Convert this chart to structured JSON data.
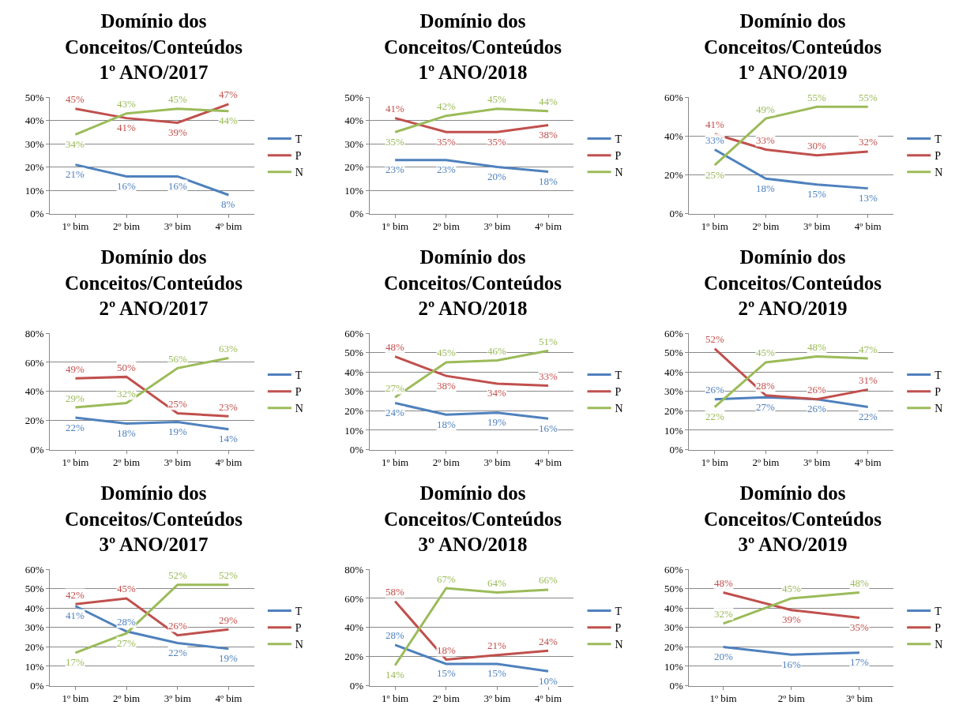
{
  "chart_data": [
    {
      "type": "line",
      "title": "Domínio dos\nConceitos/Conteúdos\n1º ANO/2017",
      "categories": [
        "1º bim",
        "2º bim",
        "3º bim",
        "4º bim"
      ],
      "ylim": [
        0,
        50
      ],
      "yticks": [
        {
          "value": 0,
          "label": "0%"
        },
        {
          "value": 10,
          "label": "10%"
        },
        {
          "value": 20,
          "label": "20%"
        },
        {
          "value": 30,
          "label": "30%"
        },
        {
          "value": 40,
          "label": "40%"
        },
        {
          "value": 50,
          "label": "50%"
        }
      ],
      "grid": "y",
      "legend": "right",
      "data_labels": true,
      "marker": "none",
      "series": [
        {
          "name": "T",
          "color": "#4f81bd",
          "values": [
            21,
            16,
            16,
            8
          ],
          "value_labels": [
            "21%",
            "16%",
            "16%",
            "8%"
          ]
        },
        {
          "name": "P",
          "color": "#c0504d",
          "values": [
            45,
            41,
            39,
            47
          ],
          "value_labels": [
            "45%",
            "41%",
            "39%",
            "47%"
          ]
        },
        {
          "name": "N",
          "color": "#9bbb59",
          "values": [
            34,
            43,
            45,
            44
          ],
          "value_labels": [
            "34%",
            "43%",
            "45%",
            "44%"
          ]
        }
      ]
    },
    {
      "type": "line",
      "title": "Domínio dos\nConceitos/Conteúdos\n1º ANO/2018",
      "categories": [
        "1º bim",
        "2º bim",
        "3º bim",
        "4º bim"
      ],
      "ylim": [
        0,
        50
      ],
      "yticks": [
        {
          "value": 0,
          "label": "0%"
        },
        {
          "value": 10,
          "label": "10%"
        },
        {
          "value": 20,
          "label": "20%"
        },
        {
          "value": 30,
          "label": "30%"
        },
        {
          "value": 40,
          "label": "40%"
        },
        {
          "value": 50,
          "label": "50%"
        }
      ],
      "grid": "y",
      "legend": "right",
      "data_labels": true,
      "marker": "none",
      "series": [
        {
          "name": "T",
          "color": "#4f81bd",
          "values": [
            23,
            23,
            20,
            18
          ],
          "value_labels": [
            "23%",
            "23%",
            "20%",
            "18%"
          ]
        },
        {
          "name": "P",
          "color": "#c0504d",
          "values": [
            41,
            35,
            35,
            38
          ],
          "value_labels": [
            "41%",
            "35%",
            "35%",
            "38%"
          ]
        },
        {
          "name": "N",
          "color": "#9bbb59",
          "values": [
            35,
            42,
            45,
            44
          ],
          "value_labels": [
            "35%",
            "42%",
            "45%",
            "44%"
          ]
        }
      ]
    },
    {
      "type": "line",
      "title": "Domínio dos\nConceitos/Conteúdos\n1º ANO/2019",
      "categories": [
        "1º bim",
        "2º bim",
        "3º bim",
        "4º bim"
      ],
      "ylim": [
        0,
        60
      ],
      "yticks": [
        {
          "value": 0,
          "label": "0%"
        },
        {
          "value": 20,
          "label": "20%"
        },
        {
          "value": 40,
          "label": "40%"
        },
        {
          "value": 60,
          "label": "60%"
        }
      ],
      "grid": "y",
      "legend": "right",
      "data_labels": true,
      "marker": "none",
      "series": [
        {
          "name": "T",
          "color": "#4f81bd",
          "values": [
            33,
            18,
            15,
            13
          ],
          "value_labels": [
            "33%",
            "18%",
            "15%",
            "13%"
          ]
        },
        {
          "name": "P",
          "color": "#c0504d",
          "values": [
            41,
            33,
            30,
            32
          ],
          "value_labels": [
            "41%",
            "33%",
            "30%",
            "32%"
          ]
        },
        {
          "name": "N",
          "color": "#9bbb59",
          "values": [
            25,
            49,
            55,
            55
          ],
          "value_labels": [
            "25%",
            "49%",
            "55%",
            "55%"
          ]
        }
      ]
    },
    {
      "type": "line",
      "title": "Domínio dos\nConceitos/Conteúdos\n2º ANO/2017",
      "categories": [
        "1º bim",
        "2º bim",
        "3º bim",
        "4º bim"
      ],
      "ylim": [
        0,
        80
      ],
      "yticks": [
        {
          "value": 0,
          "label": "0%"
        },
        {
          "value": 20,
          "label": "20%"
        },
        {
          "value": 40,
          "label": "40%"
        },
        {
          "value": 60,
          "label": "60%"
        },
        {
          "value": 80,
          "label": "80%"
        }
      ],
      "grid": "y",
      "legend": "right",
      "data_labels": true,
      "marker": "none",
      "series": [
        {
          "name": "T",
          "color": "#4f81bd",
          "values": [
            22,
            18,
            19,
            14
          ],
          "value_labels": [
            "22%",
            "18%",
            "19%",
            "14%"
          ]
        },
        {
          "name": "P",
          "color": "#c0504d",
          "values": [
            49,
            50,
            25,
            23
          ],
          "value_labels": [
            "49%",
            "50%",
            "25%",
            "23%"
          ]
        },
        {
          "name": "N",
          "color": "#9bbb59",
          "values": [
            29,
            32,
            56,
            63
          ],
          "value_labels": [
            "29%",
            "32%",
            "56%",
            "63%"
          ]
        }
      ]
    },
    {
      "type": "line",
      "title": "Domínio dos\nConceitos/Conteúdos\n2º ANO/2018",
      "categories": [
        "1º bim",
        "2º bim",
        "3º bim",
        "4º bim"
      ],
      "ylim": [
        0,
        60
      ],
      "yticks": [
        {
          "value": 0,
          "label": "0%"
        },
        {
          "value": 10,
          "label": "10%"
        },
        {
          "value": 20,
          "label": "20%"
        },
        {
          "value": 30,
          "label": "30%"
        },
        {
          "value": 40,
          "label": "40%"
        },
        {
          "value": 50,
          "label": "50%"
        },
        {
          "value": 60,
          "label": "60%"
        }
      ],
      "grid": "y",
      "legend": "right",
      "data_labels": true,
      "marker": "none",
      "series": [
        {
          "name": "T",
          "color": "#4f81bd",
          "values": [
            24,
            18,
            19,
            16
          ],
          "value_labels": [
            "24%",
            "18%",
            "19%",
            "16%"
          ]
        },
        {
          "name": "P",
          "color": "#c0504d",
          "values": [
            48,
            38,
            34,
            33
          ],
          "value_labels": [
            "48%",
            "38%",
            "34%",
            "33%"
          ]
        },
        {
          "name": "N",
          "color": "#9bbb59",
          "values": [
            27,
            45,
            46,
            51
          ],
          "value_labels": [
            "27%",
            "45%",
            "46%",
            "51%"
          ]
        }
      ]
    },
    {
      "type": "line",
      "title": "Domínio dos\nConceitos/Conteúdos\n2º ANO/2019",
      "categories": [
        "1º bim",
        "2º bim",
        "3º bim",
        "4º bim"
      ],
      "ylim": [
        0,
        60
      ],
      "yticks": [
        {
          "value": 0,
          "label": "0%"
        },
        {
          "value": 10,
          "label": "10%"
        },
        {
          "value": 20,
          "label": "20%"
        },
        {
          "value": 30,
          "label": "30%"
        },
        {
          "value": 40,
          "label": "40%"
        },
        {
          "value": 50,
          "label": "50%"
        },
        {
          "value": 60,
          "label": "60%"
        }
      ],
      "grid": "y",
      "legend": "right",
      "data_labels": true,
      "marker": "none",
      "series": [
        {
          "name": "T",
          "color": "#4f81bd",
          "values": [
            26,
            27,
            26,
            22
          ],
          "value_labels": [
            "26%",
            "27%",
            "26%",
            "22%"
          ]
        },
        {
          "name": "P",
          "color": "#c0504d",
          "values": [
            52,
            28,
            26,
            31
          ],
          "value_labels": [
            "52%",
            "28%",
            "26%",
            "31%"
          ]
        },
        {
          "name": "N",
          "color": "#9bbb59",
          "values": [
            22,
            45,
            48,
            47
          ],
          "value_labels": [
            "22%",
            "45%",
            "48%",
            "47%"
          ]
        }
      ]
    },
    {
      "type": "line",
      "title": "Domínio dos\nConceitos/Conteúdos\n3º ANO/2017",
      "categories": [
        "1º bim",
        "2º bim",
        "3º bim",
        "4º bim"
      ],
      "ylim": [
        0,
        60
      ],
      "yticks": [
        {
          "value": 0,
          "label": "0%"
        },
        {
          "value": 10,
          "label": "10%"
        },
        {
          "value": 20,
          "label": "20%"
        },
        {
          "value": 30,
          "label": "30%"
        },
        {
          "value": 40,
          "label": "40%"
        },
        {
          "value": 50,
          "label": "50%"
        },
        {
          "value": 60,
          "label": "60%"
        }
      ],
      "grid": "y",
      "legend": "right",
      "data_labels": true,
      "marker": "none",
      "series": [
        {
          "name": "T",
          "color": "#4f81bd",
          "values": [
            41,
            28,
            22,
            19
          ],
          "value_labels": [
            "41%",
            "28%",
            "22%",
            "19%"
          ]
        },
        {
          "name": "P",
          "color": "#c0504d",
          "values": [
            42,
            45,
            26,
            29
          ],
          "value_labels": [
            "42%",
            "45%",
            "26%",
            "29%"
          ]
        },
        {
          "name": "N",
          "color": "#9bbb59",
          "values": [
            17,
            27,
            52,
            52
          ],
          "value_labels": [
            "17%",
            "27%",
            "52%",
            "52%"
          ]
        }
      ]
    },
    {
      "type": "line",
      "title": "Domínio dos\nConceitos/Conteúdos\n3º ANO/2018",
      "categories": [
        "1º bim",
        "2º bim",
        "3º bim",
        "4º bim"
      ],
      "ylim": [
        0,
        80
      ],
      "yticks": [
        {
          "value": 0,
          "label": "0%"
        },
        {
          "value": 20,
          "label": "20%"
        },
        {
          "value": 40,
          "label": "40%"
        },
        {
          "value": 60,
          "label": "60%"
        },
        {
          "value": 80,
          "label": "80%"
        }
      ],
      "grid": "y",
      "legend": "right",
      "data_labels": true,
      "marker": "none",
      "series": [
        {
          "name": "T",
          "color": "#4f81bd",
          "values": [
            28,
            15,
            15,
            10
          ],
          "value_labels": [
            "28%",
            "15%",
            "15%",
            "10%"
          ]
        },
        {
          "name": "P",
          "color": "#c0504d",
          "values": [
            58,
            18,
            21,
            24
          ],
          "value_labels": [
            "58%",
            "18%",
            "21%",
            "24%"
          ]
        },
        {
          "name": "N",
          "color": "#9bbb59",
          "values": [
            14,
            67,
            64,
            66
          ],
          "value_labels": [
            "14%",
            "67%",
            "64%",
            "66%"
          ]
        }
      ]
    },
    {
      "type": "line",
      "title": "Domínio dos\nConceitos/Conteúdos\n3º ANO/2019",
      "categories": [
        "1º bim",
        "2º bim",
        "3º bim"
      ],
      "ylim": [
        0,
        60
      ],
      "yticks": [
        {
          "value": 0,
          "label": "0%"
        },
        {
          "value": 10,
          "label": "10%"
        },
        {
          "value": 20,
          "label": "20%"
        },
        {
          "value": 30,
          "label": "30%"
        },
        {
          "value": 40,
          "label": "40%"
        },
        {
          "value": 50,
          "label": "50%"
        },
        {
          "value": 60,
          "label": "60%"
        }
      ],
      "grid": "y",
      "legend": "right",
      "data_labels": true,
      "marker": "none",
      "series": [
        {
          "name": "T",
          "color": "#4f81bd",
          "values": [
            20,
            16,
            17
          ],
          "value_labels": [
            "20%",
            "16%",
            "17%"
          ]
        },
        {
          "name": "P",
          "color": "#c0504d",
          "values": [
            48,
            39,
            35
          ],
          "value_labels": [
            "48%",
            "39%",
            "35%"
          ]
        },
        {
          "name": "N",
          "color": "#9bbb59",
          "values": [
            32,
            45,
            48
          ],
          "value_labels": [
            "32%",
            "45%",
            "48%"
          ]
        }
      ]
    }
  ]
}
